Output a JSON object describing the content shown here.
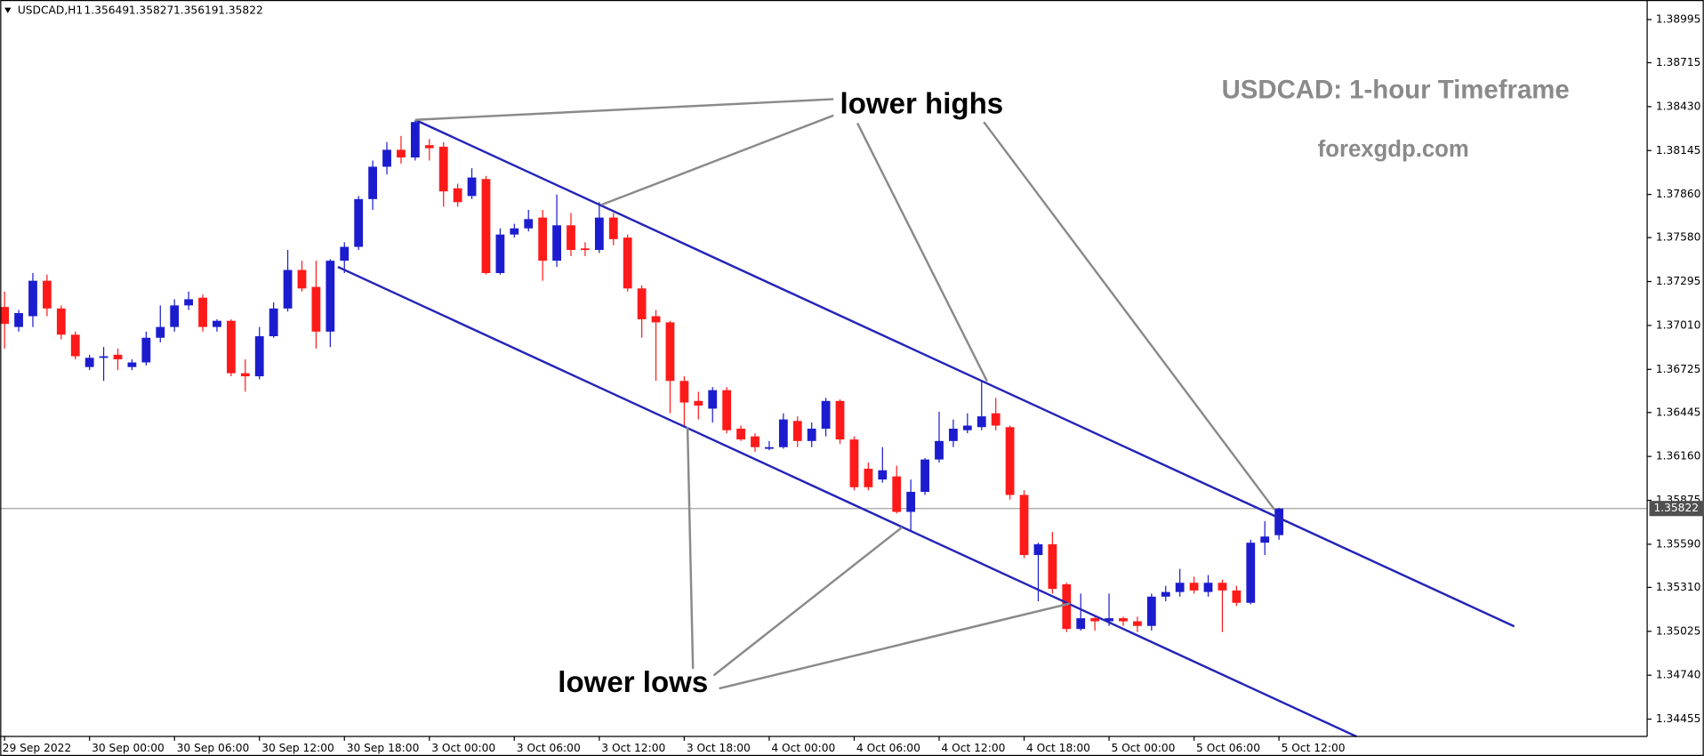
{
  "chart_data": {
    "type": "candlestick",
    "symbol": "USDCAD,H1",
    "title": "USDCAD: 1-hour Timeframe",
    "subtitle": "forexgdp.com",
    "annotations": [
      "lower highs",
      "lower lows"
    ],
    "colors": {
      "up": "#1c1ccf",
      "down": "#ff1a1a",
      "price_line": "#a0a0a0",
      "price_label": "#505050"
    },
    "grid": false,
    "categories": [
      "29 Sep 2022",
      null,
      null,
      null,
      null,
      null,
      "30 Sep 00:00",
      null,
      null,
      null,
      null,
      null,
      "30 Sep 06:00",
      null,
      null,
      null,
      null,
      null,
      "30 Sep 12:00",
      null,
      null,
      null,
      null,
      null,
      "30 Sep 18:00",
      null,
      null,
      null,
      null,
      null,
      "3 Oct 00:00",
      null,
      null,
      null,
      null,
      null,
      "3 Oct 06:00",
      null,
      null,
      null,
      null,
      null,
      "3 Oct 12:00",
      null,
      null,
      null,
      null,
      null,
      "3 Oct 18:00",
      null,
      null,
      null,
      null,
      null,
      "4 Oct 00:00",
      null,
      null,
      null,
      null,
      null,
      "4 Oct 06:00",
      null,
      null,
      null,
      null,
      null,
      "4 Oct 12:00",
      null,
      null,
      null,
      null,
      null,
      "4 Oct 18:00",
      null,
      null,
      null,
      null,
      null,
      "5 Oct 00:00",
      null,
      null,
      null,
      null,
      null,
      "5 Oct 06:00",
      null,
      null,
      null,
      null,
      null,
      "5 Oct 12:00"
    ],
    "open": [
      1.3713,
      1.37,
      1.3707,
      1.373,
      1.3712,
      1.3695,
      1.3674,
      1.368,
      1.3682,
      1.3674,
      1.3677,
      1.3693,
      1.37,
      1.3714,
      1.3719,
      1.37,
      1.3704,
      1.367,
      1.3668,
      1.3694,
      1.3712,
      1.3737,
      1.3726,
      1.3697,
      1.3743,
      1.3752,
      1.3783,
      1.3804,
      1.3815,
      1.381,
      1.3818,
      1.3817,
      1.379,
      1.3785,
      1.3796,
      1.3735,
      1.376,
      1.3764,
      1.3771,
      1.3743,
      1.3766,
      1.3751,
      1.375,
      1.3771,
      1.3758,
      1.3725,
      1.3707,
      1.3703,
      1.3665,
      1.3652,
      1.3647,
      1.3659,
      1.3634,
      1.3629,
      1.3621,
      1.3622,
      1.3639,
      1.3626,
      1.3634,
      1.3652,
      1.3627,
      1.3608,
      1.3601,
      1.3603,
      1.358,
      1.3593,
      1.3614,
      1.3626,
      1.3633,
      1.3635,
      1.3644,
      1.3635,
      1.3591,
      1.3552,
      1.3559,
      1.3533,
      1.3504,
      1.3511,
      1.3509,
      1.3511,
      1.3509,
      1.3506,
      1.3525,
      1.3528,
      1.3534,
      1.3528,
      1.3534,
      1.3529,
      1.3521,
      1.356,
      1.35649
    ],
    "high": [
      1.3723,
      1.3711,
      1.3735,
      1.3734,
      1.3714,
      1.3697,
      1.3682,
      1.3687,
      1.3686,
      1.3679,
      1.3697,
      1.3714,
      1.3718,
      1.3723,
      1.3721,
      1.3705,
      1.3705,
      1.3679,
      1.37,
      1.3716,
      1.375,
      1.3743,
      1.3743,
      1.3744,
      1.3755,
      1.3785,
      1.3808,
      1.382,
      1.3824,
      1.3834,
      1.3822,
      1.382,
      1.3793,
      1.3803,
      1.3798,
      1.3764,
      1.3767,
      1.3776,
      1.3776,
      1.3786,
      1.3774,
      1.3755,
      1.3781,
      1.3774,
      1.376,
      1.3727,
      1.3711,
      1.3704,
      1.3668,
      1.3658,
      1.3661,
      1.3661,
      1.3636,
      1.3631,
      1.3626,
      1.3644,
      1.3642,
      1.3638,
      1.3654,
      1.3653,
      1.3629,
      1.3612,
      1.3622,
      1.361,
      1.3601,
      1.3615,
      1.3645,
      1.364,
      1.3644,
      1.3665,
      1.3654,
      1.3636,
      1.3594,
      1.356,
      1.3567,
      1.3534,
      1.3527,
      1.3513,
      1.3527,
      1.3512,
      1.3512,
      1.3527,
      1.3532,
      1.3543,
      1.3538,
      1.3539,
      1.3536,
      1.3532,
      1.3562,
      1.3574,
      1.35827
    ],
    "low": [
      1.3686,
      1.3697,
      1.37,
      1.3707,
      1.3692,
      1.3679,
      1.3672,
      1.3665,
      1.3672,
      1.3672,
      1.3675,
      1.369,
      1.3697,
      1.3711,
      1.3697,
      1.3697,
      1.3668,
      1.3658,
      1.3666,
      1.3693,
      1.371,
      1.3723,
      1.3686,
      1.3687,
      1.3735,
      1.375,
      1.3776,
      1.3799,
      1.3806,
      1.3808,
      1.3808,
      1.3778,
      1.3778,
      1.3783,
      1.3734,
      1.3734,
      1.3758,
      1.3762,
      1.373,
      1.3739,
      1.3746,
      1.3746,
      1.3748,
      1.3753,
      1.3723,
      1.3693,
      1.3665,
      1.3644,
      1.3635,
      1.364,
      1.3638,
      1.3631,
      1.3626,
      1.3619,
      1.362,
      1.3621,
      1.3622,
      1.3622,
      1.3629,
      1.3624,
      1.3594,
      1.3594,
      1.3599,
      1.3579,
      1.3567,
      1.3591,
      1.3612,
      1.3622,
      1.3631,
      1.3633,
      1.3633,
      1.3588,
      1.355,
      1.3522,
      1.3527,
      1.3502,
      1.3503,
      1.3503,
      1.3506,
      1.3506,
      1.3502,
      1.3503,
      1.3522,
      1.3525,
      1.3527,
      1.3525,
      1.3502,
      1.3519,
      1.352,
      1.3552,
      1.35619
    ],
    "close": [
      1.3702,
      1.3709,
      1.373,
      1.3712,
      1.3695,
      1.3681,
      1.368,
      1.3681,
      1.3679,
      1.3677,
      1.3693,
      1.37,
      1.3714,
      1.3718,
      1.37,
      1.3704,
      1.367,
      1.3668,
      1.3694,
      1.3712,
      1.3737,
      1.3725,
      1.3697,
      1.3743,
      1.3752,
      1.3783,
      1.3804,
      1.3815,
      1.381,
      1.3833,
      1.3816,
      1.3788,
      1.3781,
      1.3797,
      1.3735,
      1.376,
      1.3764,
      1.377,
      1.3743,
      1.3766,
      1.375,
      1.375,
      1.3771,
      1.3757,
      1.3725,
      1.3705,
      1.3703,
      1.3665,
      1.3651,
      1.3649,
      1.3659,
      1.3633,
      1.3627,
      1.3622,
      1.3622,
      1.364,
      1.3626,
      1.3634,
      1.3652,
      1.3627,
      1.3596,
      1.3596,
      1.3607,
      1.358,
      1.3593,
      1.3614,
      1.3626,
      1.3634,
      1.3636,
      1.3642,
      1.3636,
      1.3591,
      1.3552,
      1.3559,
      1.353,
      1.3504,
      1.3511,
      1.3509,
      1.3511,
      1.3509,
      1.3506,
      1.3525,
      1.3528,
      1.3534,
      1.3529,
      1.3534,
      1.3529,
      1.3521,
      1.356,
      1.3564,
      1.35822
    ],
    "ylim": [
      1.34343,
      1.39122
    ],
    "yticks": [
      1.38995,
      1.38715,
      {
        "value": 1.3843,
        "label": "1.38430"
      },
      1.38145,
      {
        "value": 1.3786,
        "label": "1.37860"
      },
      {
        "value": 1.3758,
        "label": "1.37580"
      },
      1.37295,
      {
        "value": 1.3701,
        "label": "1.37010"
      },
      1.36725,
      1.36445,
      {
        "value": 1.3616,
        "label": "1.36160"
      },
      1.35875,
      {
        "value": 1.3559,
        "label": "1.35590"
      },
      {
        "value": 1.3531,
        "label": "1.35310"
      },
      1.35025,
      {
        "value": 1.3474,
        "label": "1.34740"
      },
      1.34455
    ]
  }
}
